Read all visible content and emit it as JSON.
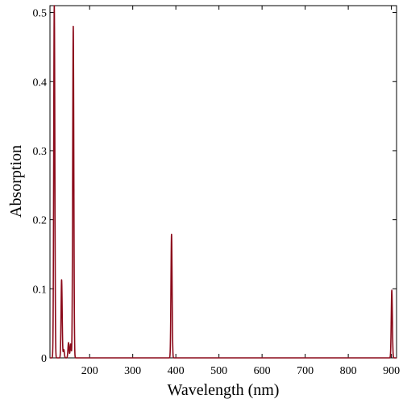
{
  "chart_data": {
    "type": "line",
    "xlabel": "Wavelength (nm)",
    "ylabel": "Absorption",
    "xlim": [
      108,
      912
    ],
    "ylim": [
      0,
      0.51
    ],
    "x_ticks": [
      200,
      300,
      400,
      500,
      600,
      700,
      800,
      900
    ],
    "y_ticks": [
      0,
      0.1,
      0.2,
      0.3,
      0.4,
      0.5
    ],
    "x_tick_labels": [
      "200",
      "300",
      "400",
      "500",
      "600",
      "700",
      "800",
      "900"
    ],
    "y_tick_labels": [
      "0",
      "0.1",
      "0.2",
      "0.3",
      "0.4",
      "0.5"
    ],
    "grid": false,
    "legend": "none",
    "line_color": "#8b0a1a",
    "series": [
      {
        "peaks": [
          {
            "x": 118,
            "y": 0.51
          },
          {
            "x": 135,
            "y": 0.113
          },
          {
            "x": 140,
            "y": 0.012
          },
          {
            "x": 151,
            "y": 0.022
          },
          {
            "x": 156,
            "y": 0.02
          },
          {
            "x": 162,
            "y": 0.48
          },
          {
            "x": 390,
            "y": 0.179
          },
          {
            "x": 901,
            "y": 0.098
          }
        ]
      }
    ]
  }
}
